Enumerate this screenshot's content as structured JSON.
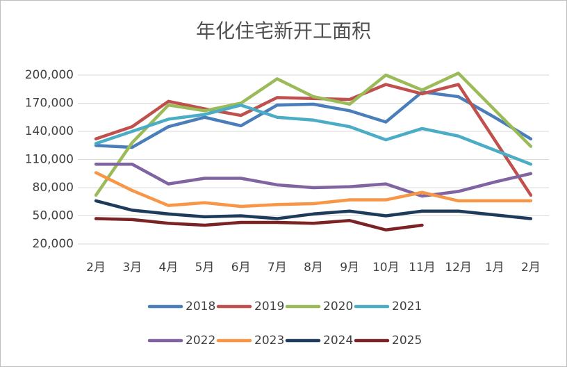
{
  "chart_data": {
    "type": "line",
    "title": "年化住宅新开工面积",
    "categories": [
      "2月",
      "3月",
      "4月",
      "5月",
      "6月",
      "7月",
      "8月",
      "9月",
      "10月",
      "11月",
      "12月",
      "1月",
      "2月"
    ],
    "ylim": [
      20000,
      200000
    ],
    "yticks": [
      {
        "value": 20000,
        "label": "20,000"
      },
      {
        "value": 50000,
        "label": "50,000"
      },
      {
        "value": 80000,
        "label": "80,000"
      },
      {
        "value": 110000,
        "label": "110,000"
      },
      {
        "value": 140000,
        "label": "140,000"
      },
      {
        "value": 170000,
        "label": "170,000"
      },
      {
        "value": 200000,
        "label": "200,000"
      }
    ],
    "grid": true,
    "legend": "bottom",
    "series": [
      {
        "name": "2018",
        "color": "#4a7ebb",
        "values": [
          125000,
          123000,
          145000,
          155000,
          146000,
          168000,
          169000,
          162000,
          150000,
          182000,
          177000,
          155000,
          132000
        ]
      },
      {
        "name": "2019",
        "color": "#c0504d",
        "values": [
          132000,
          145000,
          172000,
          164000,
          157000,
          176000,
          175000,
          174000,
          190000,
          180000,
          190000,
          131000,
          72000
        ]
      },
      {
        "name": "2020",
        "color": "#9bbb59",
        "values": [
          72000,
          128000,
          168000,
          162000,
          170000,
          196000,
          177000,
          169000,
          200000,
          184000,
          202000,
          163000,
          124000
        ]
      },
      {
        "name": "2021",
        "color": "#4bacc6",
        "values": [
          127000,
          140000,
          153000,
          158000,
          168000,
          155000,
          152000,
          145000,
          131000,
          143000,
          135000,
          120000,
          105000
        ]
      },
      {
        "name": "2022",
        "color": "#8064a2",
        "values": [
          105000,
          105000,
          84000,
          90000,
          90000,
          83000,
          80000,
          81000,
          84000,
          71000,
          76000,
          86000,
          95000
        ]
      },
      {
        "name": "2023",
        "color": "#f79646",
        "values": [
          96000,
          77000,
          61000,
          64000,
          60000,
          62000,
          63000,
          67000,
          67000,
          75000,
          66000,
          66000,
          66000
        ]
      },
      {
        "name": "2024",
        "color": "#1f3b5c",
        "values": [
          66000,
          56000,
          52000,
          49000,
          50000,
          47000,
          52000,
          55000,
          50000,
          55000,
          55000,
          51000,
          47000
        ]
      },
      {
        "name": "2025",
        "color": "#7b2324",
        "values": [
          47000,
          46000,
          42000,
          40000,
          43000,
          43000,
          42000,
          45000,
          35000,
          40000,
          null,
          null,
          null
        ]
      }
    ]
  }
}
